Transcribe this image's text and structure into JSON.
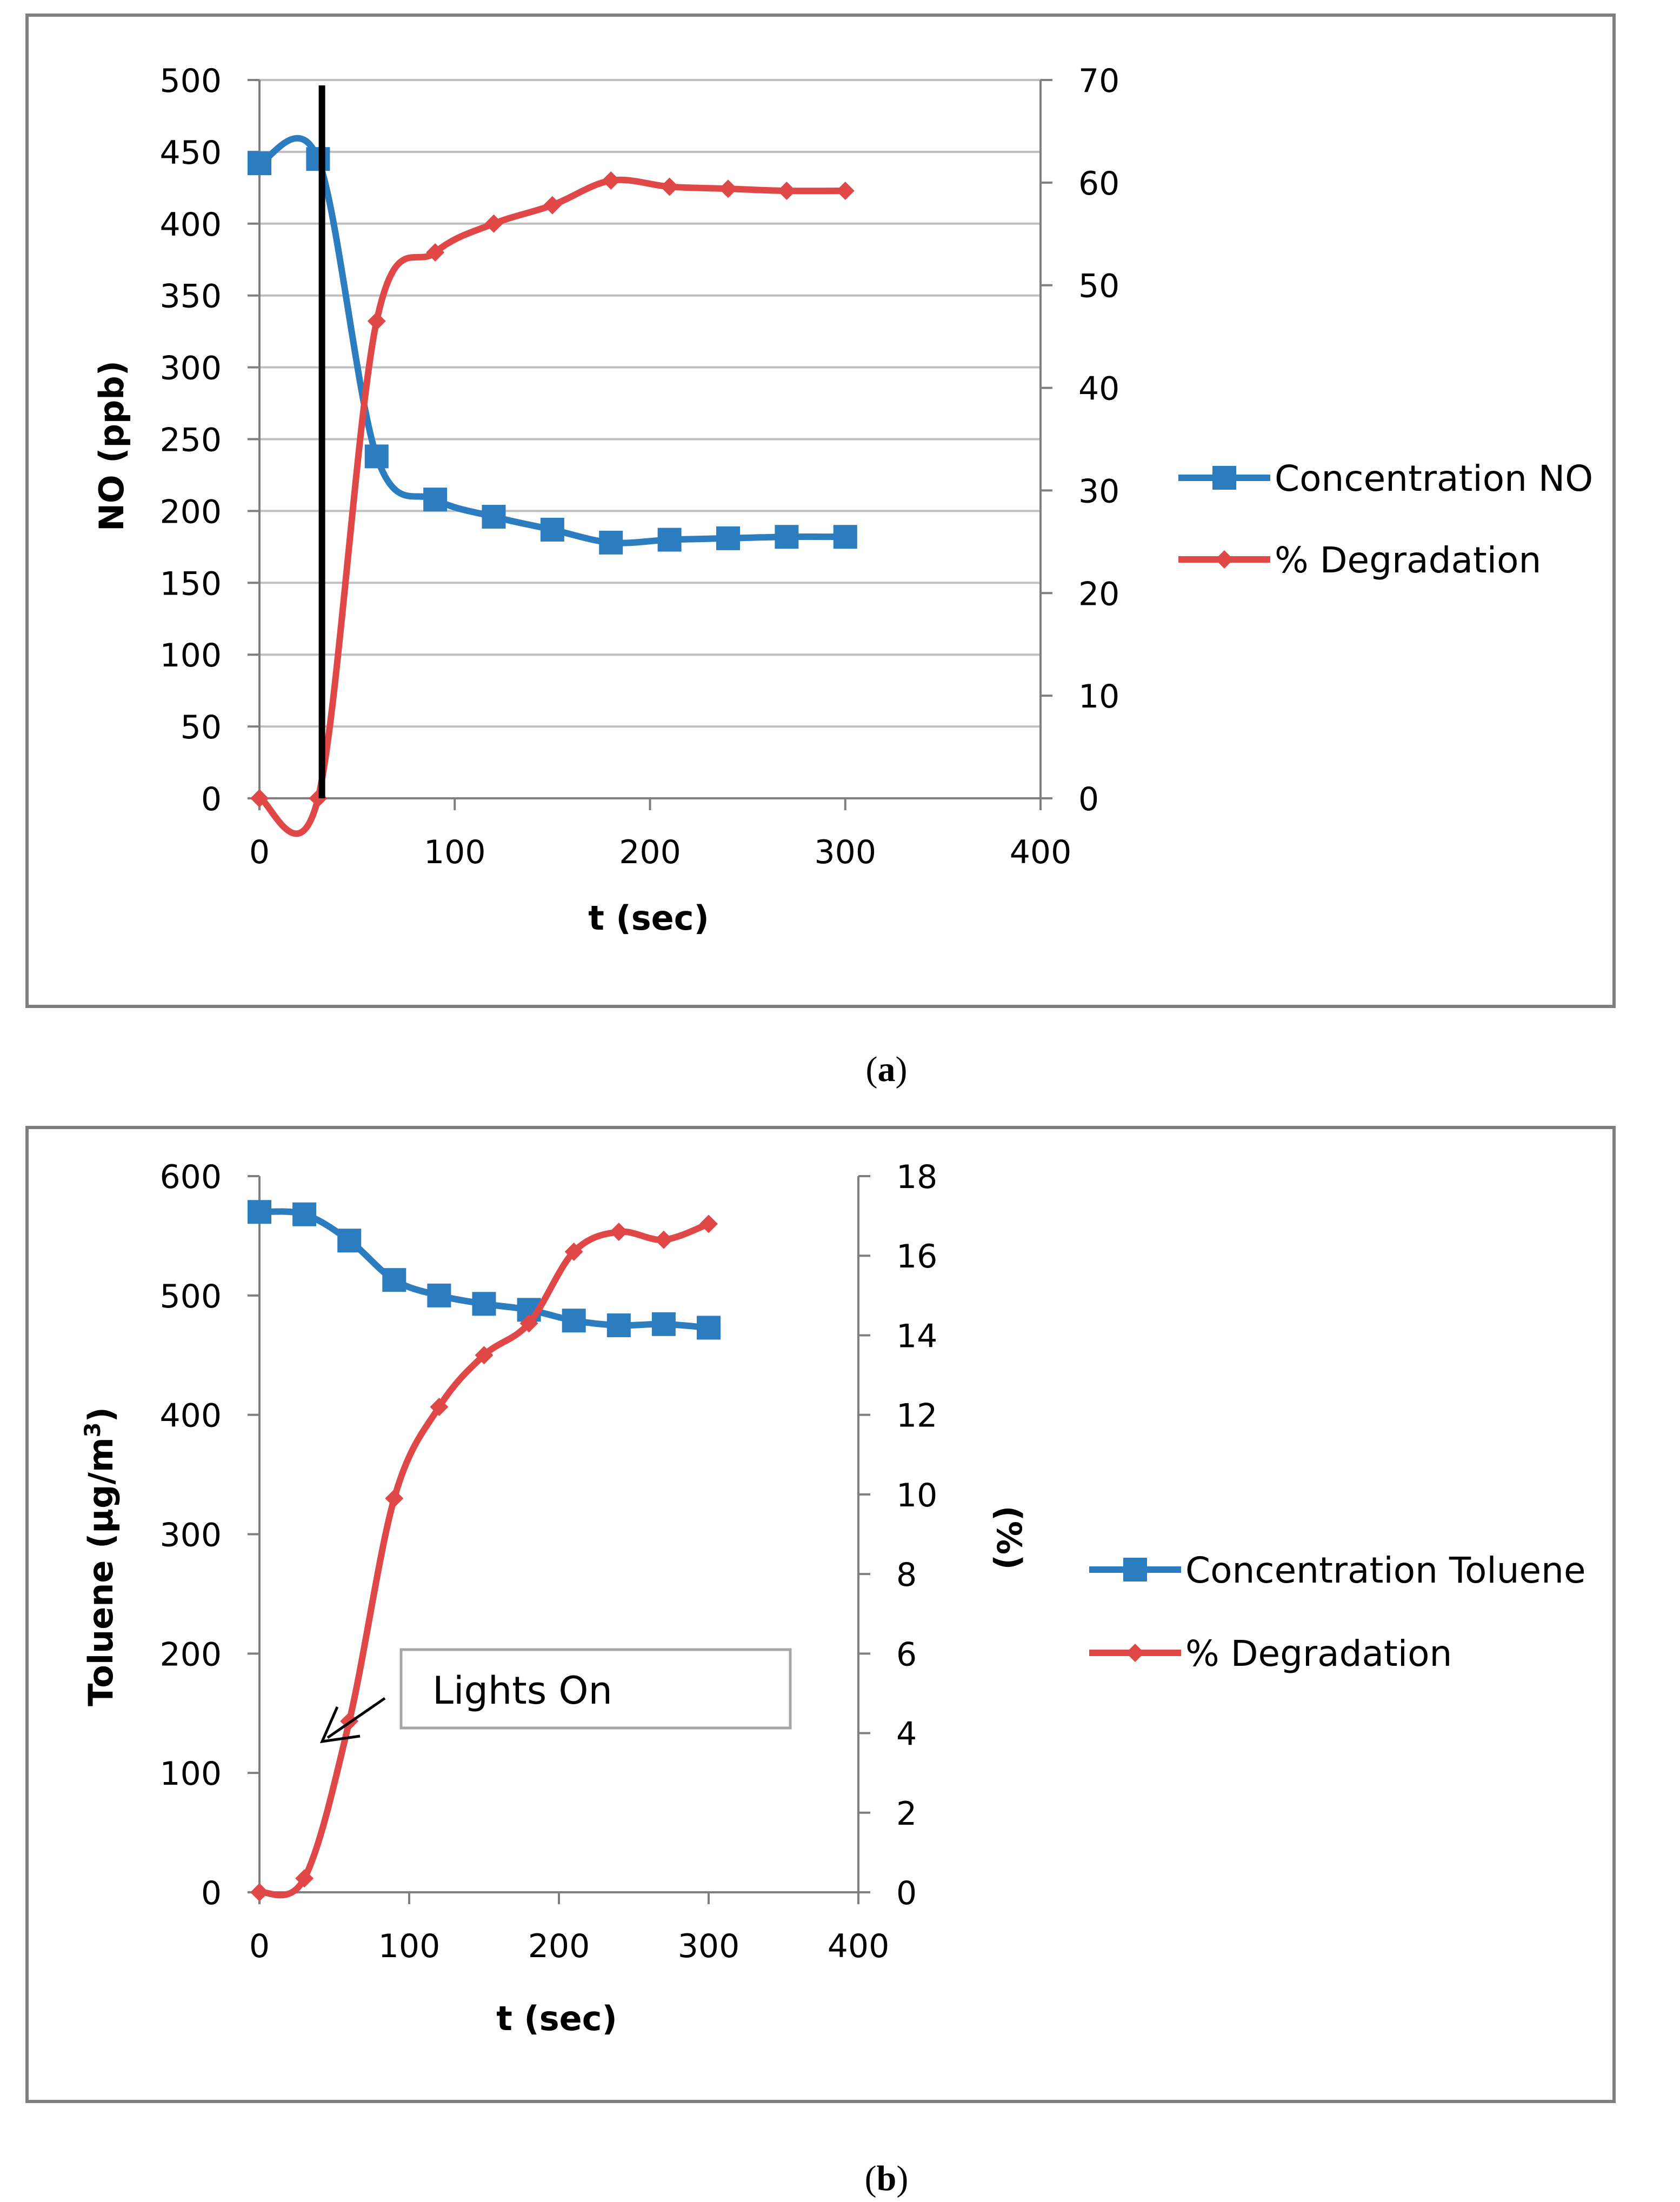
{
  "colors": {
    "blue": "#2c7cc0",
    "red": "#e04848",
    "grid": "#bfbfbf",
    "frame": "#7f7f7f",
    "marker": "#000000"
  },
  "chart_data": [
    {
      "type": "line",
      "panel": "a",
      "caption": {
        "open": "(",
        "letter": "a",
        "close": ")"
      },
      "xlabel": "t (sec)",
      "ylabel": "NO (ppb)",
      "y2label": "",
      "xlim": [
        0,
        400
      ],
      "ylim": [
        0,
        500
      ],
      "y2lim": [
        0,
        70
      ],
      "xticks": [
        "0",
        "100",
        "200",
        "300",
        "400"
      ],
      "yticks": [
        "0",
        "50",
        "100",
        "150",
        "200",
        "250",
        "300",
        "350",
        "400",
        "450",
        "500"
      ],
      "y2ticks": [
        "0",
        "10",
        "20",
        "30",
        "40",
        "50",
        "60",
        "70"
      ],
      "grid": true,
      "legend_position": "right",
      "vertical_line_x": 32,
      "series": [
        {
          "name": "Concentration NO",
          "axis": "left",
          "marker": "square",
          "x": [
            0,
            30,
            60,
            90,
            120,
            150,
            180,
            210,
            240,
            270,
            300
          ],
          "values": [
            442,
            445,
            238,
            208,
            196,
            187,
            178,
            180,
            181,
            182,
            182
          ]
        },
        {
          "name": "% Degradation",
          "axis": "right",
          "marker": "diamond",
          "x": [
            0,
            30,
            60,
            90,
            120,
            150,
            180,
            210,
            240,
            270,
            300
          ],
          "values": [
            0,
            0,
            46.5,
            53.2,
            56.0,
            57.8,
            60.2,
            59.6,
            59.4,
            59.2,
            59.2
          ]
        }
      ]
    },
    {
      "type": "line",
      "panel": "b",
      "caption": {
        "open": "(",
        "letter": "b",
        "close": ")"
      },
      "xlabel": "t (sec)",
      "ylabel": "Toluene  (µg/m",
      "ylabel_sup": "3",
      "ylabel_close": ")",
      "y2label": "(%)",
      "xlim": [
        0,
        400
      ],
      "ylim": [
        0,
        600
      ],
      "y2lim": [
        0,
        18
      ],
      "xticks": [
        "0",
        "100",
        "200",
        "300",
        "400"
      ],
      "yticks": [
        "0",
        "100",
        "200",
        "300",
        "400",
        "500",
        "600"
      ],
      "y2ticks": [
        "0",
        "2",
        "4",
        "6",
        "8",
        "10",
        "12",
        "14",
        "16",
        "18"
      ],
      "grid": false,
      "legend_position": "right",
      "annotation": "Lights On",
      "series": [
        {
          "name": "Concentration Toluene",
          "axis": "left",
          "marker": "square",
          "x": [
            0,
            30,
            60,
            90,
            120,
            150,
            180,
            210,
            240,
            270,
            300
          ],
          "values": [
            570,
            568,
            546,
            513,
            500,
            493,
            488,
            479,
            475,
            476,
            473
          ]
        },
        {
          "name": "% Degradation",
          "axis": "right",
          "marker": "diamond",
          "x": [
            0,
            30,
            60,
            90,
            120,
            150,
            180,
            210,
            240,
            270,
            300
          ],
          "values": [
            0,
            0.35,
            4.3,
            9.9,
            12.2,
            13.5,
            14.3,
            16.1,
            16.6,
            16.4,
            16.8
          ]
        }
      ]
    }
  ]
}
